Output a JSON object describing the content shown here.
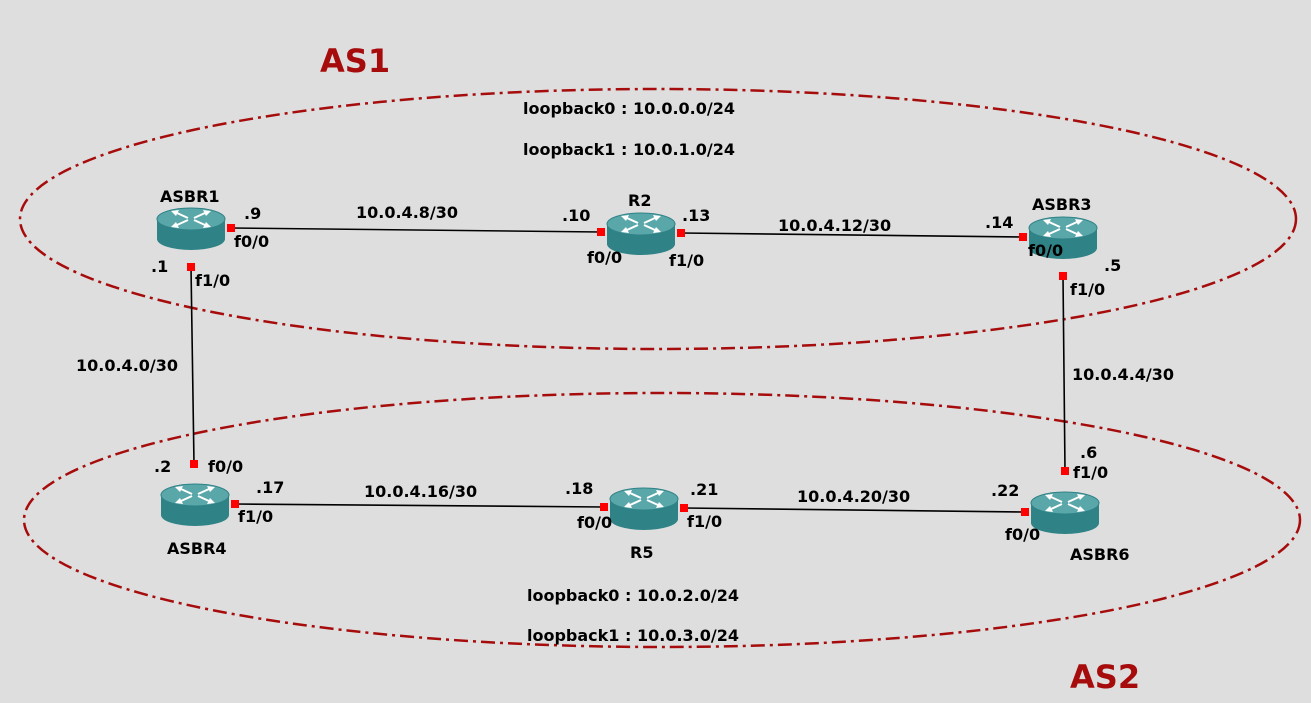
{
  "colors": {
    "background": "#dedede",
    "as_zone": "#a60c0c",
    "as_label": "#a60c0c",
    "port": "#ff0000",
    "router_top": "#5aa7aa",
    "router_side": "#2f8286",
    "link": "#000000"
  },
  "as_zones": [
    {
      "name": "AS1",
      "loopbacks": [
        "loopback0 : 10.0.0.0/24",
        "loopback1 : 10.0.1.0/24"
      ]
    },
    {
      "name": "AS2",
      "loopbacks": [
        "loopback0 : 10.0.2.0/24",
        "loopback1 : 10.0.3.0/24"
      ]
    }
  ],
  "routers": [
    {
      "id": "ASBR1",
      "name": "ASBR1",
      "icon": "router-icon"
    },
    {
      "id": "R2",
      "name": "R2",
      "icon": "router-icon"
    },
    {
      "id": "ASBR3",
      "name": "ASBR3",
      "icon": "router-icon"
    },
    {
      "id": "ASBR4",
      "name": "ASBR4",
      "icon": "router-icon"
    },
    {
      "id": "R5",
      "name": "R5",
      "icon": "router-icon"
    },
    {
      "id": "ASBR6",
      "name": "ASBR6",
      "icon": "router-icon"
    }
  ],
  "links": [
    {
      "id": "l1",
      "subnet": "10.0.4.8/30",
      "a": {
        "router": "ASBR1",
        "iface": "f0/0",
        "ip": ".9"
      },
      "b": {
        "router": "R2",
        "iface": "f0/0",
        "ip": ".10"
      }
    },
    {
      "id": "l2",
      "subnet": "10.0.4.12/30",
      "a": {
        "router": "R2",
        "iface": "f1/0",
        "ip": ".13"
      },
      "b": {
        "router": "ASBR3",
        "iface": "f0/0",
        "ip": ".14"
      }
    },
    {
      "id": "l3",
      "subnet": "10.0.4.0/30",
      "a": {
        "router": "ASBR1",
        "iface": "f1/0",
        "ip": ".1"
      },
      "b": {
        "router": "ASBR4",
        "iface": "f0/0",
        "ip": ".2"
      }
    },
    {
      "id": "l4",
      "subnet": "10.0.4.4/30",
      "a": {
        "router": "ASBR3",
        "iface": "f1/0",
        "ip": ".5"
      },
      "b": {
        "router": "ASBR6",
        "iface": "f1/0",
        "ip": ".6"
      }
    },
    {
      "id": "l5",
      "subnet": "10.0.4.16/30",
      "a": {
        "router": "ASBR4",
        "iface": "f1/0",
        "ip": ".17"
      },
      "b": {
        "router": "R5",
        "iface": "f0/0",
        "ip": ".18"
      }
    },
    {
      "id": "l6",
      "subnet": "10.0.4.20/30",
      "a": {
        "router": "R5",
        "iface": "f1/0",
        "ip": ".21"
      },
      "b": {
        "router": "ASBR6",
        "iface": "f0/0",
        "ip": ".22"
      }
    }
  ]
}
